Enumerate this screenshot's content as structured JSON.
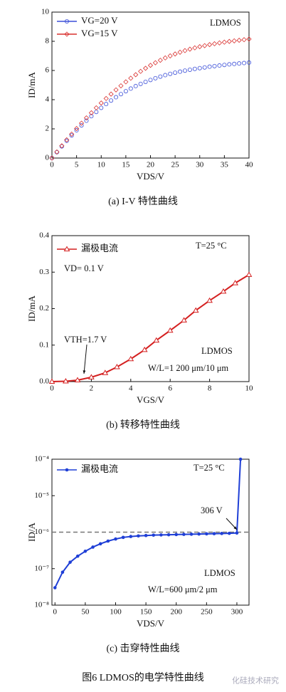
{
  "chart_data": [
    {
      "type": "scatter",
      "caption": "(a) I-V 特性曲线",
      "xlabel": "VDS/V",
      "ylabel": "ID/mA",
      "annotations": [
        "LDMOS"
      ],
      "x": [
        0,
        1,
        2,
        3,
        4,
        5,
        6,
        7,
        8,
        9,
        10,
        11,
        12,
        13,
        14,
        15,
        16,
        17,
        18,
        19,
        20,
        21,
        22,
        23,
        24,
        25,
        26,
        27,
        28,
        29,
        30,
        31,
        32,
        33,
        34,
        35,
        36,
        37,
        38,
        39,
        40
      ],
      "series": [
        {
          "name": "VG=20 V",
          "color": "#3b4fd8",
          "marker": "circle-open",
          "values": [
            0,
            0.4,
            0.8,
            1.18,
            1.55,
            1.9,
            2.24,
            2.56,
            2.87,
            3.16,
            3.44,
            3.7,
            3.94,
            4.17,
            4.38,
            4.58,
            4.76,
            4.93,
            5.08,
            5.22,
            5.35,
            5.47,
            5.58,
            5.68,
            5.77,
            5.85,
            5.92,
            5.99,
            6.05,
            6.11,
            6.16,
            6.21,
            6.26,
            6.3,
            6.34,
            6.38,
            6.42,
            6.45,
            6.48,
            6.51,
            6.54
          ]
        },
        {
          "name": "VG=15 V",
          "color": "#d9312f",
          "marker": "diamond-open",
          "values": [
            0,
            0.42,
            0.84,
            1.25,
            1.64,
            2.02,
            2.39,
            2.75,
            3.1,
            3.44,
            3.77,
            4.08,
            4.38,
            4.67,
            4.95,
            5.22,
            5.47,
            5.71,
            5.94,
            6.15,
            6.35,
            6.53,
            6.7,
            6.86,
            7.0,
            7.13,
            7.25,
            7.36,
            7.46,
            7.55,
            7.63,
            7.7,
            7.77,
            7.83,
            7.89,
            7.94,
            7.99,
            8.03,
            8.07,
            8.11,
            8.15
          ]
        }
      ],
      "xlim": [
        0,
        40
      ],
      "xticks": [
        0,
        5,
        10,
        15,
        20,
        25,
        30,
        35,
        40
      ],
      "ylim": [
        0,
        10
      ],
      "yticks": [
        0,
        2,
        4,
        6,
        8,
        10
      ]
    },
    {
      "type": "line",
      "caption": "(b) 转移特性曲线",
      "xlabel": "VGS/V",
      "ylabel": "ID/mA",
      "annotations": [
        "T=25 °C",
        "VD= 0.1 V",
        "VTH=1.7 V",
        "LDMOS",
        "W/L=1 200 μm/10 μm"
      ],
      "x": [
        0,
        0.7,
        1.3,
        2,
        2.7,
        3.3,
        4,
        4.7,
        5.3,
        6,
        6.7,
        7.3,
        8,
        8.7,
        9.3,
        10
      ],
      "series": [
        {
          "name": "漏极电流",
          "color": "#d41f1f",
          "marker": "triangle-open",
          "values": [
            0,
            0.001,
            0.004,
            0.012,
            0.024,
            0.04,
            0.062,
            0.087,
            0.113,
            0.14,
            0.168,
            0.195,
            0.222,
            0.247,
            0.27,
            0.293
          ]
        }
      ],
      "xlim": [
        0,
        10
      ],
      "xticks": [
        0,
        2,
        4,
        6,
        8,
        10
      ],
      "ylim": [
        0,
        0.4
      ],
      "yticks": [
        {
          "value": 0,
          "label": "0.0"
        },
        0.1,
        0.2,
        0.3,
        0.4
      ]
    },
    {
      "type": "line",
      "caption": "(c) 击穿特性曲线",
      "xlabel": "VDS/V",
      "ylabel": "ID/A",
      "log_y": true,
      "hline": 1e-06,
      "annotations": [
        "T=25 °C",
        "306 V",
        "LDMOS",
        "W/L=600 μm/2 μm"
      ],
      "x": [
        0,
        12.5,
        25,
        37.5,
        50,
        62.5,
        75,
        87.5,
        100,
        112.5,
        125,
        137.5,
        150,
        162.5,
        175,
        187.5,
        200,
        212.5,
        225,
        237.5,
        250,
        262.5,
        275,
        287.5,
        300,
        306
      ],
      "series": [
        {
          "name": "漏极电流",
          "color": "#1f3fd6",
          "marker": "circle",
          "values": [
            3e-08,
            8e-08,
            1.5e-07,
            2.2e-07,
            3e-07,
            3.9e-07,
            4.8e-07,
            5.7e-07,
            6.5e-07,
            7.2e-07,
            7.6e-07,
            7.9e-07,
            8.1e-07,
            8.3e-07,
            8.4e-07,
            8.5e-07,
            8.6e-07,
            8.7e-07,
            8.8e-07,
            8.9e-07,
            9e-07,
            9.1e-07,
            9.2e-07,
            9.3e-07,
            9.5e-07,
            0.0001
          ]
        }
      ],
      "xlim": [
        -5,
        320
      ],
      "xticks": [
        0,
        50,
        100,
        150,
        200,
        250,
        300
      ],
      "ylim": [
        1e-08,
        0.0001
      ],
      "yticks": [
        {
          "value": 1e-08,
          "label": "10⁻⁸"
        },
        {
          "value": 1e-07,
          "label": "10⁻⁷"
        },
        {
          "value": 1e-06,
          "label": "10⁻⁶"
        },
        {
          "value": 1e-05,
          "label": "10⁻⁵"
        },
        {
          "value": 0.0001,
          "label": "10⁻⁴"
        }
      ]
    }
  ],
  "figure_caption": "图6 LDMOS的电学特性曲线",
  "watermark": "化硅技术研究"
}
